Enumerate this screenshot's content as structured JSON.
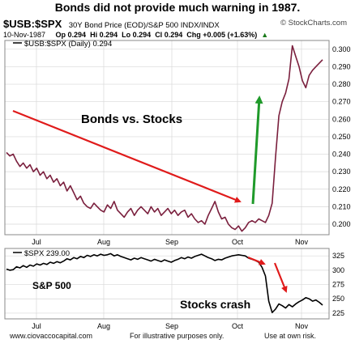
{
  "headline": "Bonds did not provide much warning in 1987.",
  "header": {
    "symbol": "$USB:$SPX",
    "description": "30Y Bond Price (EOD)/S&P 500 INDX/INDX",
    "credit": "© StockCharts.com",
    "date": "10-Nov-1987",
    "open": "Op 0.294",
    "high": "Hi 0.294",
    "low": "Lo 0.294",
    "close": "Cl 0.294",
    "change": "Chg +0.005 (+1.63%)",
    "change_arrow": "▲"
  },
  "annotations": {
    "bonds_vs_stocks": "Bonds vs. Stocks",
    "sp500": "S&P 500",
    "stocks_crash": "Stocks crash"
  },
  "footer": {
    "site": "www.ciovaccocapital.com",
    "illustrative": "For illustrative purposes only.",
    "risk": "Use at own risk."
  },
  "colors": {
    "ratio_line": "#7a1f3d",
    "spx_line": "#000000",
    "red_arrow": "#e01b1b",
    "green_arrow": "#1f9a2a",
    "grid": "#d8d8d8"
  },
  "chart_data": [
    {
      "type": "line",
      "legend": "$USB:$SPX (Daily) 0.294",
      "legend_position": "top-left",
      "grid": true,
      "x_labels": [
        "Jul",
        "Aug",
        "Sep",
        "Oct",
        "Nov"
      ],
      "y_ticks": [
        "0.300",
        "0.290",
        "0.280",
        "0.270",
        "0.260",
        "0.250",
        "0.240",
        "0.230",
        "0.220",
        "0.210",
        "0.200"
      ],
      "ylim": [
        0.194,
        0.305
      ],
      "series": [
        {
          "values": [
            0.241,
            0.239,
            0.24,
            0.236,
            0.233,
            0.235,
            0.232,
            0.234,
            0.23,
            0.232,
            0.228,
            0.23,
            0.226,
            0.228,
            0.224,
            0.226,
            0.222,
            0.224,
            0.219,
            0.222,
            0.218,
            0.214,
            0.216,
            0.212,
            0.21,
            0.209,
            0.212,
            0.21,
            0.208,
            0.207,
            0.211,
            0.209,
            0.213,
            0.208,
            0.206,
            0.204,
            0.207,
            0.209,
            0.205,
            0.208,
            0.21,
            0.208,
            0.206,
            0.21,
            0.207,
            0.209,
            0.205,
            0.207,
            0.209,
            0.206,
            0.208,
            0.205,
            0.207,
            0.208,
            0.204,
            0.206,
            0.203,
            0.201,
            0.202,
            0.2,
            0.205,
            0.209,
            0.213,
            0.207,
            0.203,
            0.204,
            0.2,
            0.198,
            0.197,
            0.199,
            0.196,
            0.198,
            0.201,
            0.202,
            0.201,
            0.203,
            0.202,
            0.201,
            0.205,
            0.212,
            0.238,
            0.262,
            0.27,
            0.275,
            0.283,
            0.302,
            0.296,
            0.29,
            0.282,
            0.278,
            0.285,
            0.288,
            0.29,
            0.292,
            0.294
          ]
        }
      ]
    },
    {
      "type": "line",
      "legend": "$SPX 239.00",
      "legend_position": "top-left",
      "grid": true,
      "x_labels": [
        "Jul",
        "Aug",
        "Sep",
        "Oct",
        "Nov"
      ],
      "y_ticks": [
        "325",
        "300",
        "275",
        "250",
        "225"
      ],
      "ylim": [
        215,
        338
      ],
      "series": [
        {
          "values": [
            302,
            300,
            301,
            306,
            304,
            308,
            305,
            309,
            307,
            311,
            309,
            312,
            310,
            314,
            312,
            315,
            313,
            316,
            320,
            318,
            322,
            320,
            324,
            322,
            326,
            324,
            327,
            325,
            328,
            326,
            327,
            329,
            325,
            327,
            324,
            322,
            320,
            318,
            321,
            319,
            322,
            320,
            318,
            316,
            319,
            317,
            315,
            318,
            316,
            314,
            317,
            319,
            322,
            320,
            323,
            321,
            324,
            326,
            328,
            325,
            322,
            320,
            317,
            319,
            318,
            321,
            323,
            325,
            326,
            327,
            326,
            325,
            321,
            319,
            317,
            314,
            305,
            290,
            246,
            226,
            232,
            241,
            238,
            234,
            240,
            236,
            241,
            245,
            248,
            252,
            250,
            246,
            248,
            244,
            239
          ]
        }
      ]
    }
  ]
}
